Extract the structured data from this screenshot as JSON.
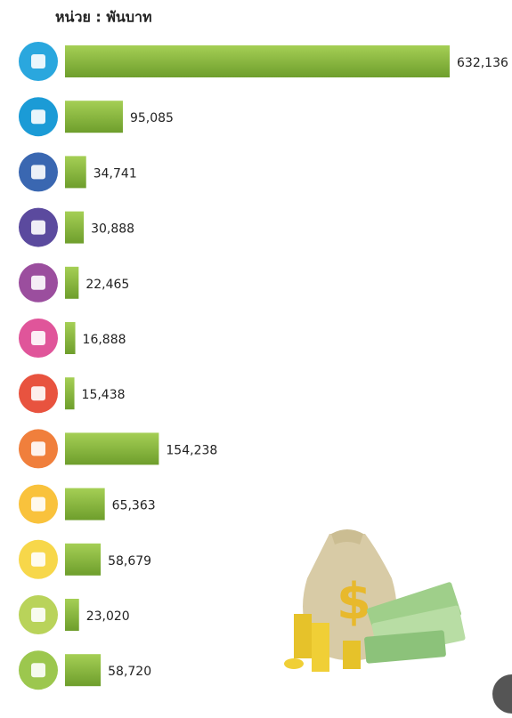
{
  "chart_data": {
    "type": "bar",
    "orientation": "horizontal",
    "title": "หน่วย : พันบาท",
    "values": [
      632136,
      95085,
      34741,
      30888,
      22465,
      16888,
      15438,
      154238,
      65363,
      58679,
      23020,
      58720
    ],
    "value_labels": [
      "632,136",
      "95,085",
      "34,741",
      "30,888",
      "22,465",
      "16,888",
      "15,438",
      "154,238",
      "65,363",
      "58,679",
      "23,020",
      "58,720"
    ],
    "color": "#86b93a"
  }
}
